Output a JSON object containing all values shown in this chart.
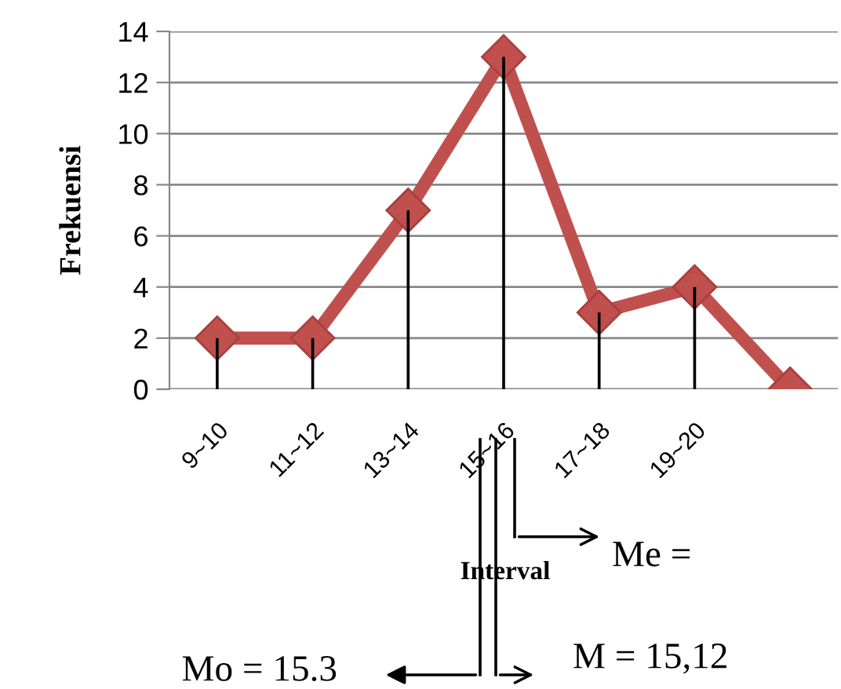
{
  "chart_data": {
    "type": "line",
    "ylabel": "Frekuensi",
    "xlabel": "Interval",
    "categories": [
      "9~10",
      "11~12",
      "13~14",
      "15~16",
      "17~18",
      "19~20",
      null
    ],
    "series": [
      {
        "type": "bar",
        "color": "#000000",
        "values": [
          2,
          2,
          7,
          13,
          3,
          4,
          0
        ]
      },
      {
        "color": "#c0504d",
        "values": [
          2,
          2,
          7,
          13,
          3,
          4,
          0
        ]
      }
    ],
    "ylim": [
      0,
      14
    ],
    "yticks": [
      0,
      2,
      4,
      6,
      8,
      10,
      12,
      14
    ],
    "grid": "y",
    "marker": "diamond",
    "line_style": "solid",
    "annotations": [
      "Me =",
      "M = 15,12",
      "Mo = 15.3"
    ]
  }
}
